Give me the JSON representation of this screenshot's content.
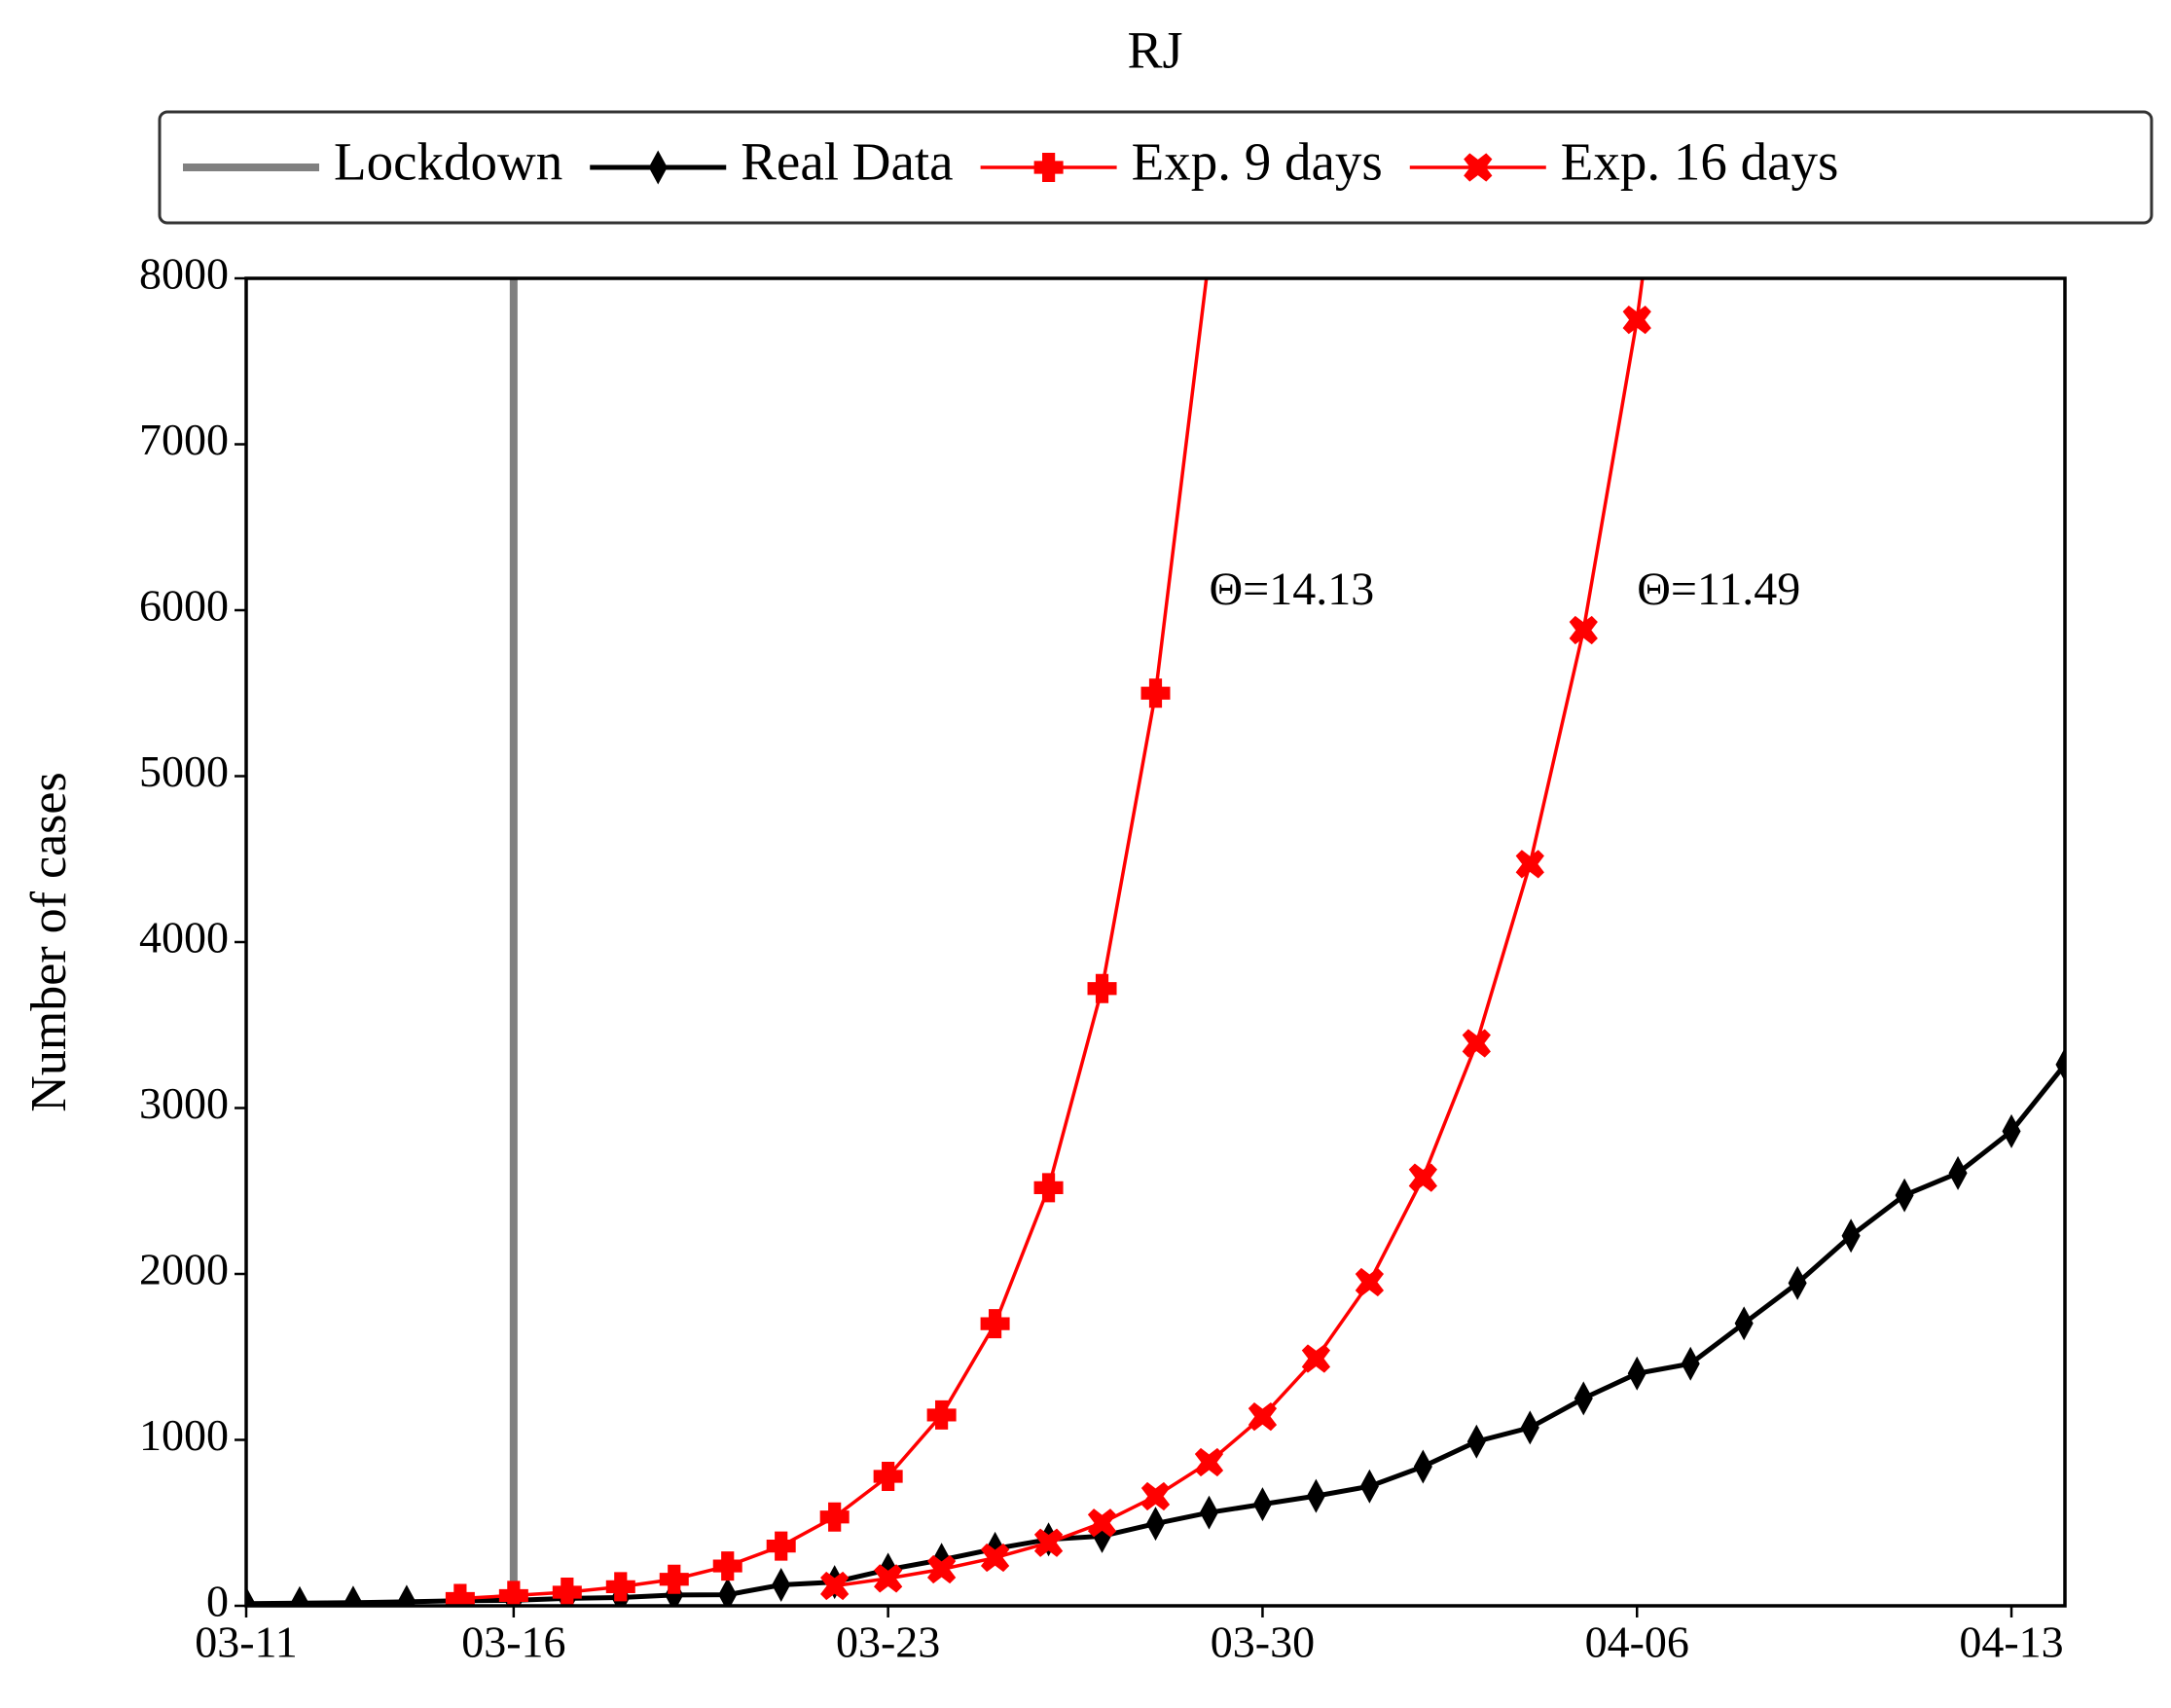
{
  "chart_data": {
    "type": "line",
    "title": "RJ",
    "y_label": "Number of cases",
    "x": [
      "03-11",
      "03-12",
      "03-13",
      "03-14",
      "03-15",
      "03-16",
      "03-17",
      "03-18",
      "03-19",
      "03-20",
      "03-21",
      "03-22",
      "03-23",
      "03-24",
      "03-25",
      "03-26",
      "03-27",
      "03-28",
      "03-29",
      "03-30",
      "03-31",
      "04-01",
      "04-02",
      "04-03",
      "04-04",
      "04-05",
      "04-06",
      "04-07",
      "04-08",
      "04-09",
      "04-10",
      "04-11",
      "04-12",
      "04-13",
      "04-14"
    ],
    "xlim": [
      "03-11",
      "04-14"
    ],
    "xticks": [
      "03-11",
      "03-16",
      "03-23",
      "03-30",
      "04-06",
      "04-13"
    ],
    "ylim": [
      0,
      8000
    ],
    "yticks": [
      0,
      1000,
      2000,
      3000,
      4000,
      5000,
      6000,
      7000,
      8000
    ],
    "lockdown": {
      "name": "Lockdown",
      "x": "03-16",
      "color": "#808080"
    },
    "series": [
      {
        "name": "Real Data",
        "color": "#000000",
        "marker": "diamond",
        "values": [
          13,
          16,
          19,
          24,
          31,
          33,
          45,
          50,
          65,
          67,
          126,
          143,
          218,
          277,
          344,
          400,
          420,
          495,
          562,
          612,
          662,
          720,
          839,
          990,
          1074,
          1250,
          1400,
          1459,
          1702,
          1945,
          2230,
          2474,
          2608,
          2860,
          3262
        ]
      },
      {
        "name": "Exp. 9 days",
        "color": "#ff0000",
        "marker": "plus",
        "values": [
          null,
          null,
          null,
          null,
          44,
          62,
          82,
          115,
          160,
          240,
          360,
          535,
          780,
          1150,
          1700,
          2520,
          3720,
          5500,
          8130,
          null,
          null,
          null,
          null,
          null,
          null,
          null,
          null,
          null,
          null,
          null,
          null,
          null,
          null,
          null,
          null
        ]
      },
      {
        "name": "Exp. 16 days",
        "color": "#ff0000",
        "marker": "x",
        "values": [
          null,
          null,
          null,
          null,
          null,
          null,
          null,
          null,
          null,
          null,
          null,
          120,
          165,
          220,
          290,
          380,
          500,
          660,
          865,
          1140,
          1490,
          1950,
          2580,
          3390,
          4470,
          5880,
          7750,
          10200,
          null,
          null,
          null,
          null,
          null,
          null,
          null
        ]
      }
    ],
    "annotations": [
      {
        "text": "Θ=14.13",
        "x": "03-29",
        "y": 6100
      },
      {
        "text": "Θ=11.49",
        "x": "04-06",
        "y": 6100
      }
    ]
  }
}
